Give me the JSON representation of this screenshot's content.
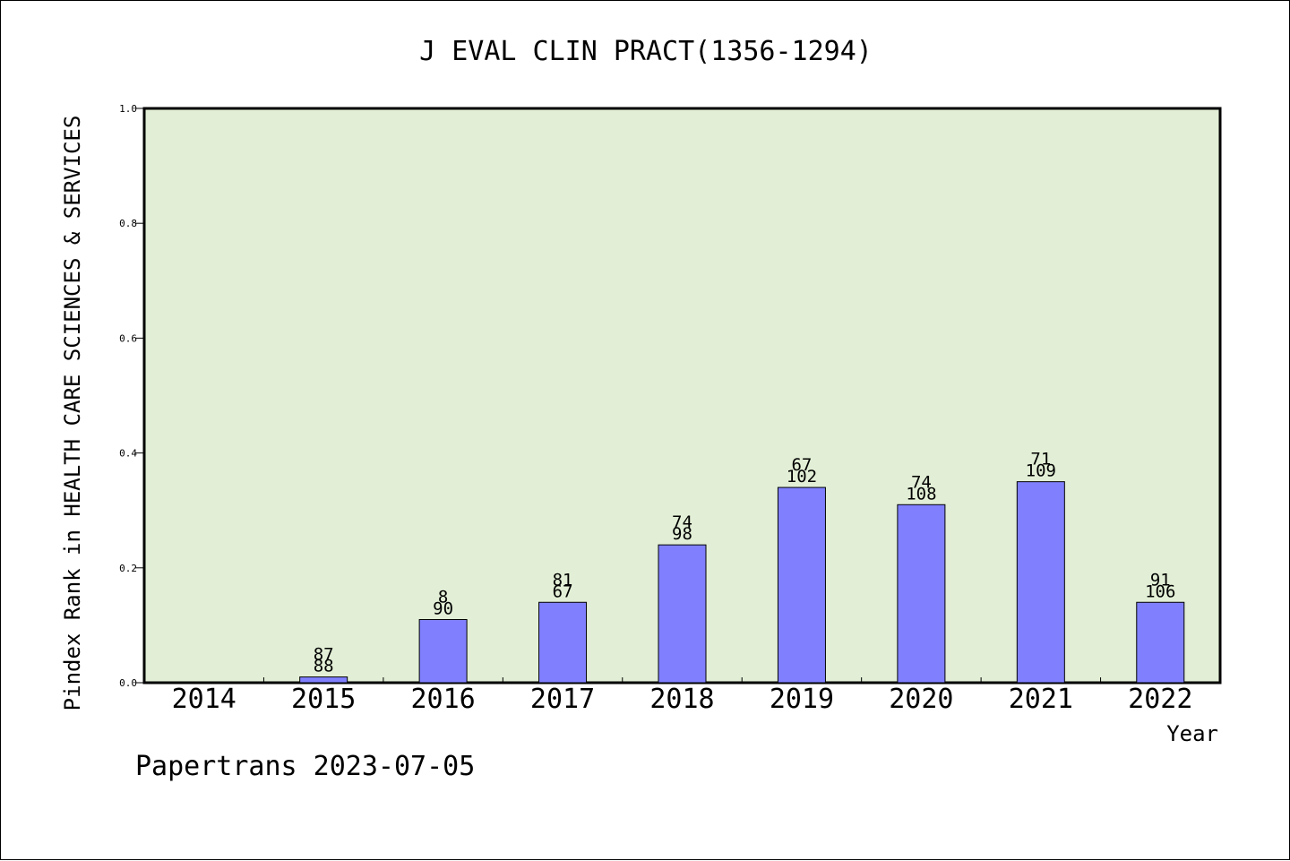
{
  "chart_data": {
    "type": "bar",
    "title": "J EVAL CLIN PRACT(1356-1294)",
    "xlabel": "Year",
    "ylabel": "Pindex Rank in HEALTH CARE SCIENCES & SERVICES",
    "footer": "Papertrans 2023-07-05",
    "ylim": [
      0,
      1.0
    ],
    "yticks": [
      "0.0",
      "0.2",
      "0.4",
      "0.6",
      "0.8",
      "1.0"
    ],
    "ytick_values": [
      0.0,
      0.2,
      0.4,
      0.6,
      0.8,
      1.0
    ],
    "categories": [
      "2014",
      "2015",
      "2016",
      "2017",
      "2018",
      "2019",
      "2020",
      "2021",
      "2022"
    ],
    "values": [
      null,
      0.01,
      0.11,
      0.14,
      0.24,
      0.34,
      0.31,
      0.35,
      0.14
    ],
    "labels_top": [
      null,
      "87",
      "8",
      "81",
      "74",
      "67",
      "74",
      "71",
      "91"
    ],
    "labels_bottom": [
      null,
      "88",
      "90",
      "67",
      "98",
      "102",
      "108",
      "109",
      "106"
    ],
    "grid": false,
    "colors": {
      "plot_background": "#e2efd6",
      "bar_fill": "#8080ff",
      "bar_stroke": "#000000"
    }
  }
}
